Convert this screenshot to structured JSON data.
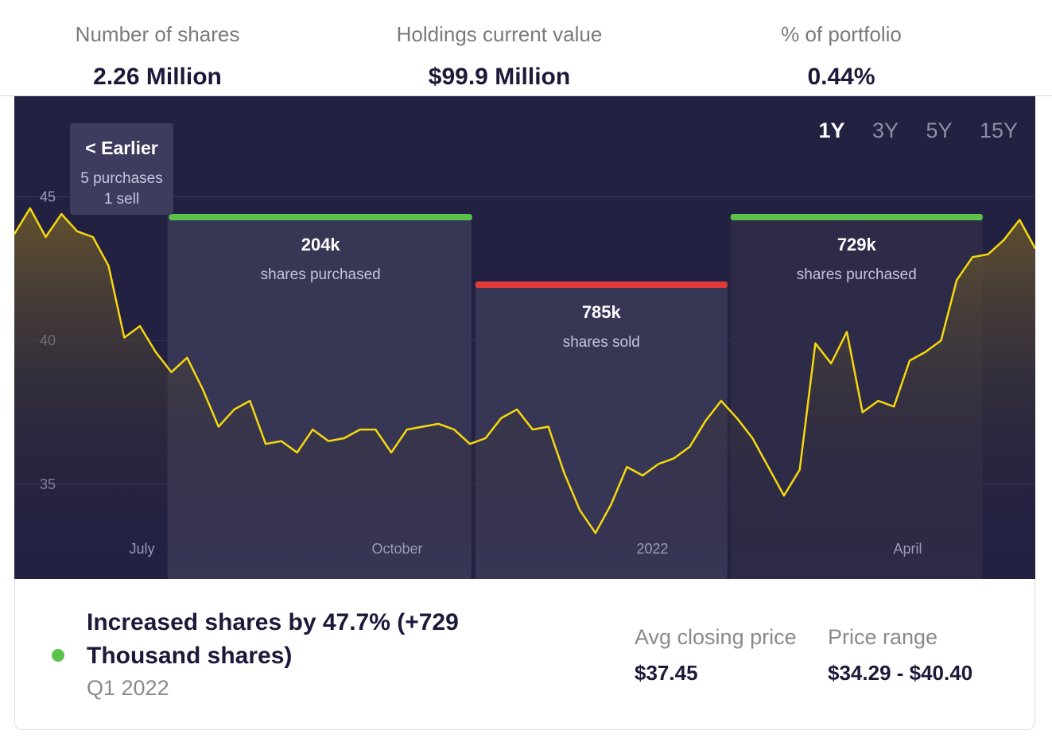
{
  "stats": [
    {
      "label": "Number of shares",
      "value": "2.26 Million"
    },
    {
      "label": "Holdings current value",
      "value": "$99.9 Million"
    },
    {
      "label": "% of portfolio",
      "value": "0.44%"
    }
  ],
  "ranges": [
    "1Y",
    "3Y",
    "5Y",
    "15Y"
  ],
  "active_range": "1Y",
  "earlier": {
    "title": "< Earlier",
    "line1": "5 purchases",
    "line2": "1 sell"
  },
  "colors": {
    "background": "#232142",
    "price_line": "#f5d80f",
    "buy": "#5cc24b",
    "sell": "#e03a3a",
    "grid": "#3a3858"
  },
  "chart_data": {
    "type": "line",
    "x_ticks": [
      "July",
      "October",
      "2022",
      "April"
    ],
    "y_ticks": [
      35,
      40,
      45
    ],
    "ylim": [
      31.7,
      48.5
    ],
    "grid": true,
    "series": [
      {
        "values": [
          43.7,
          44.6,
          43.6,
          44.4,
          43.8,
          43.6,
          42.6,
          40.1,
          40.5,
          39.6,
          38.9,
          39.4,
          38.3,
          37.0,
          37.6,
          37.9,
          36.4,
          36.5,
          36.1,
          36.9,
          36.5,
          36.6,
          36.9,
          36.9,
          36.1,
          36.9,
          37.0,
          37.1,
          36.9,
          36.4,
          36.6,
          37.3,
          37.6,
          36.9,
          37.0,
          35.4,
          34.1,
          33.3,
          34.3,
          35.6,
          35.3,
          35.7,
          35.9,
          36.3,
          37.2,
          37.9,
          37.3,
          36.6,
          35.6,
          34.6,
          35.5,
          39.9,
          39.2,
          40.3,
          37.5,
          37.9,
          37.7,
          39.3,
          39.6,
          40.0,
          42.1,
          42.9,
          43.0,
          43.5,
          44.2,
          43.2
        ],
        "color": "#f5d80f"
      }
    ],
    "transactions": [
      {
        "value": "204k",
        "label": "shares purchased",
        "type": "buy",
        "x_start": 0.15,
        "x_end": 0.45
      },
      {
        "value": "785k",
        "label": "shares sold",
        "type": "sell",
        "x_start": 0.45,
        "x_end": 0.7
      },
      {
        "value": "729k",
        "label": "shares purchased",
        "type": "buy",
        "x_start": 0.7,
        "x_end": 0.95
      }
    ]
  },
  "footer": {
    "headline": "Increased shares by 47.7% (+729 Thousand shares)",
    "quarter": "Q1 2022",
    "metrics": [
      {
        "label": "Avg closing price",
        "value": "$37.45"
      },
      {
        "label": "Price range",
        "value": "$34.29 - $40.40"
      }
    ]
  }
}
